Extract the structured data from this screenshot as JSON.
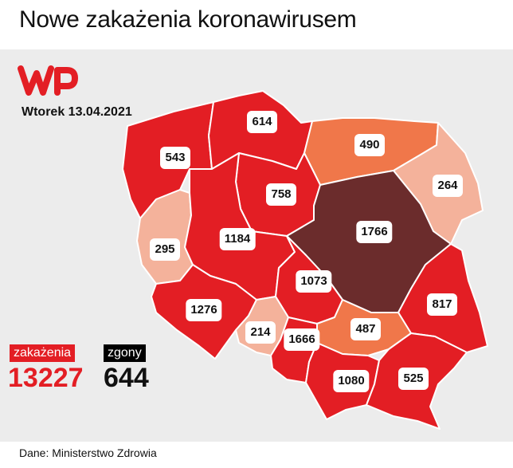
{
  "title": "Nowe zakażenia koronawirusem",
  "date": "Wtorek 13.04.2021",
  "logo": {
    "icon": "wp-logo",
    "color": "#e31e24"
  },
  "colors": {
    "background": "#ececec",
    "high": "#e31e24",
    "very_high": "#6b2c2c",
    "medium": "#f0774a",
    "low": "#f4b29b",
    "border": "#ffffff"
  },
  "regions": [
    {
      "value": "614",
      "color": "#e31e24"
    },
    {
      "value": "543",
      "color": "#e31e24"
    },
    {
      "value": "490",
      "color": "#f0774a"
    },
    {
      "value": "264",
      "color": "#f4b29b"
    },
    {
      "value": "758",
      "color": "#e31e24"
    },
    {
      "value": "1766",
      "color": "#6b2c2c"
    },
    {
      "value": "295",
      "color": "#f4b29b"
    },
    {
      "value": "1184",
      "color": "#e31e24"
    },
    {
      "value": "1073",
      "color": "#e31e24"
    },
    {
      "value": "817",
      "color": "#e31e24"
    },
    {
      "value": "1276",
      "color": "#e31e24"
    },
    {
      "value": "214",
      "color": "#f4b29b"
    },
    {
      "value": "1666",
      "color": "#e31e24"
    },
    {
      "value": "487",
      "color": "#f0774a"
    },
    {
      "value": "1080",
      "color": "#e31e24"
    },
    {
      "value": "525",
      "color": "#e31e24"
    }
  ],
  "totals": {
    "cases_label": "zakażenia",
    "cases": "13227",
    "deaths_label": "zgony",
    "deaths": "644"
  },
  "source": "Dane: Ministerstwo Zdrowia"
}
